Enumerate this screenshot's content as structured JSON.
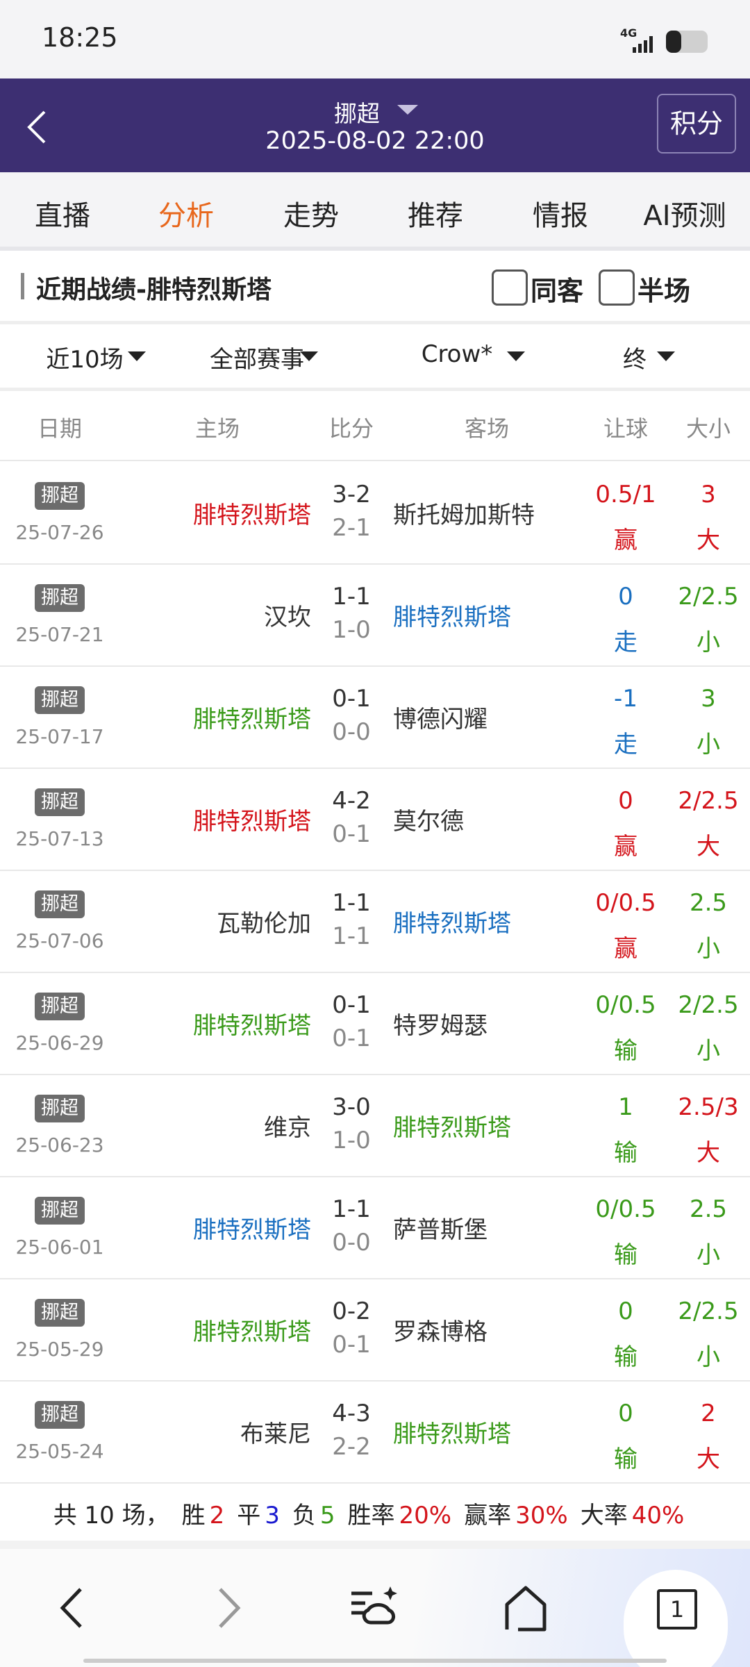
{
  "status": {
    "time": "18:25",
    "network": "4G"
  },
  "header": {
    "league": "挪超",
    "datetime": "2025-08-02 22:00",
    "button": "积分"
  },
  "tabs": {
    "items": [
      "直播",
      "分析",
      "走势",
      "推荐",
      "情报",
      "AI预测"
    ],
    "active": 1
  },
  "section": {
    "title": "近期战绩-腓特烈斯塔",
    "checkboxes": [
      "同客",
      "半场"
    ]
  },
  "filters": [
    "近10场",
    "全部赛事",
    "Crow*",
    "终"
  ],
  "columns": [
    "日期",
    "主场",
    "比分",
    "客场",
    "让球",
    "大小"
  ],
  "rows": [
    {
      "league": "挪超",
      "date": "25-07-26",
      "home": "腓特烈斯塔",
      "home_color": "#d4141b",
      "score": "3-2",
      "half": "2-1",
      "away": "斯托姆加斯特",
      "away_color": "#333333",
      "handicap": "0.5/1",
      "handicap_result": "赢",
      "handicap_color": "#d4141b",
      "ou": "3",
      "ou_result": "大",
      "ou_color": "#d4141b"
    },
    {
      "league": "挪超",
      "date": "25-07-21",
      "home": "汉坎",
      "home_color": "#333333",
      "score": "1-1",
      "half": "1-0",
      "away": "腓特烈斯塔",
      "away_color": "#1a6fc0",
      "handicap": "0",
      "handicap_result": "走",
      "handicap_color": "#1a6fc0",
      "ou": "2/2.5",
      "ou_result": "小",
      "ou_color": "#3a9a1a"
    },
    {
      "league": "挪超",
      "date": "25-07-17",
      "home": "腓特烈斯塔",
      "home_color": "#3a9a1a",
      "score": "0-1",
      "half": "0-0",
      "away": "博德闪耀",
      "away_color": "#333333",
      "handicap": "-1",
      "handicap_result": "走",
      "handicap_color": "#1a6fc0",
      "ou": "3",
      "ou_result": "小",
      "ou_color": "#3a9a1a"
    },
    {
      "league": "挪超",
      "date": "25-07-13",
      "home": "腓特烈斯塔",
      "home_color": "#d4141b",
      "score": "4-2",
      "half": "0-1",
      "away": "莫尔德",
      "away_color": "#333333",
      "handicap": "0",
      "handicap_result": "赢",
      "handicap_color": "#d4141b",
      "ou": "2/2.5",
      "ou_result": "大",
      "ou_color": "#d4141b"
    },
    {
      "league": "挪超",
      "date": "25-07-06",
      "home": "瓦勒伦加",
      "home_color": "#333333",
      "score": "1-1",
      "half": "1-1",
      "away": "腓特烈斯塔",
      "away_color": "#1a6fc0",
      "handicap": "0/0.5",
      "handicap_result": "赢",
      "handicap_color": "#d4141b",
      "ou": "2.5",
      "ou_result": "小",
      "ou_color": "#3a9a1a"
    },
    {
      "league": "挪超",
      "date": "25-06-29",
      "home": "腓特烈斯塔",
      "home_color": "#3a9a1a",
      "score": "0-1",
      "half": "0-1",
      "away": "特罗姆瑟",
      "away_color": "#333333",
      "handicap": "0/0.5",
      "handicap_result": "输",
      "handicap_color": "#3a9a1a",
      "ou": "2/2.5",
      "ou_result": "小",
      "ou_color": "#3a9a1a"
    },
    {
      "league": "挪超",
      "date": "25-06-23",
      "home": "维京",
      "home_color": "#333333",
      "score": "3-0",
      "half": "1-0",
      "away": "腓特烈斯塔",
      "away_color": "#3a9a1a",
      "handicap": "1",
      "handicap_result": "输",
      "handicap_color": "#3a9a1a",
      "ou": "2.5/3",
      "ou_result": "大",
      "ou_color": "#d4141b"
    },
    {
      "league": "挪超",
      "date": "25-06-01",
      "home": "腓特烈斯塔",
      "home_color": "#1a6fc0",
      "score": "1-1",
      "half": "0-0",
      "away": "萨普斯堡",
      "away_color": "#333333",
      "handicap": "0/0.5",
      "handicap_result": "输",
      "handicap_color": "#3a9a1a",
      "ou": "2.5",
      "ou_result": "小",
      "ou_color": "#3a9a1a"
    },
    {
      "league": "挪超",
      "date": "25-05-29",
      "home": "腓特烈斯塔",
      "home_color": "#3a9a1a",
      "score": "0-2",
      "half": "0-1",
      "away": "罗森博格",
      "away_color": "#333333",
      "handicap": "0",
      "handicap_result": "输",
      "handicap_color": "#3a9a1a",
      "ou": "2/2.5",
      "ou_result": "小",
      "ou_color": "#3a9a1a"
    },
    {
      "league": "挪超",
      "date": "25-05-24",
      "home": "布莱尼",
      "home_color": "#333333",
      "score": "4-3",
      "half": "2-2",
      "away": "腓特烈斯塔",
      "away_color": "#3a9a1a",
      "handicap": "0",
      "handicap_result": "输",
      "handicap_color": "#3a9a1a",
      "ou": "2",
      "ou_result": "大",
      "ou_color": "#d4141b"
    }
  ],
  "summary": [
    {
      "text": "共 10 场，",
      "color": "#222222"
    },
    {
      "text": "胜",
      "color": "#222222"
    },
    {
      "text": "2",
      "color": "#d4141b"
    },
    {
      "text": "平",
      "color": "#222222"
    },
    {
      "text": "3",
      "color": "#1a1ad0"
    },
    {
      "text": "负",
      "color": "#222222"
    },
    {
      "text": "5",
      "color": "#3a9a1a"
    },
    {
      "text": "胜率",
      "color": "#222222"
    },
    {
      "text": "20%",
      "color": "#d4141b"
    },
    {
      "text": "赢率",
      "color": "#222222"
    },
    {
      "text": "30%",
      "color": "#d4141b"
    },
    {
      "text": "大率",
      "color": "#222222"
    },
    {
      "text": "40%",
      "color": "#d4141b"
    }
  ],
  "bottom_nav": {
    "tab_count": "1"
  }
}
